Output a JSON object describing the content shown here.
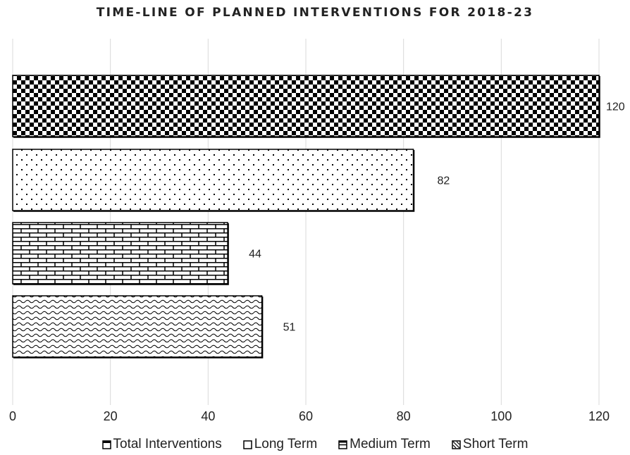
{
  "chart_data": {
    "type": "bar",
    "orientation": "horizontal",
    "title": "TIME-LINE OF PLANNED INTERVENTIONS FOR 2018-23",
    "xlim": [
      0,
      120
    ],
    "x_ticks": [
      0,
      20,
      40,
      60,
      80,
      100,
      120
    ],
    "grid": "vertical gridlines",
    "legend_position": "bottom",
    "series": [
      {
        "name": "Total Interventions",
        "value": 120,
        "label": "120",
        "pattern": "checkerboard"
      },
      {
        "name": "Long Term",
        "value": 82,
        "label": "82",
        "pattern": "dots"
      },
      {
        "name": "Medium Term",
        "value": 44,
        "label": "44",
        "pattern": "bricks"
      },
      {
        "name": "Short Term",
        "value": 51,
        "label": "51",
        "pattern": "waves"
      }
    ]
  },
  "colors": {
    "bar_outline": "#000000",
    "pattern_ink": "#000000",
    "background": "#ffffff",
    "grid": "#d9d9d9",
    "text": "#222222"
  }
}
